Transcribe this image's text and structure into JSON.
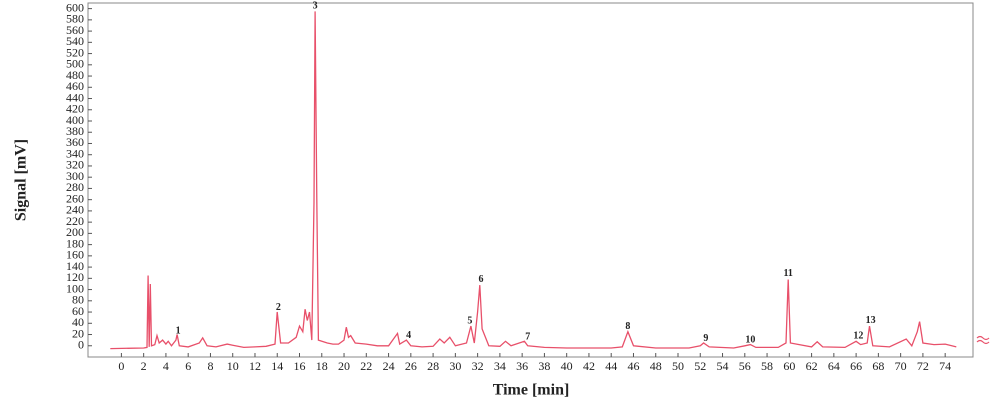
{
  "chart_data": {
    "type": "line",
    "x_label": "Time [min]",
    "y_label": "Signal [mV]",
    "x": [
      -1,
      2,
      2.3,
      2.4,
      2.5,
      2.6,
      2.7,
      3,
      3.2,
      3.4,
      3.7,
      4,
      4.2,
      4.5,
      4.9,
      5.0,
      5.2,
      6,
      7,
      7.3,
      7.7,
      8.5,
      9.5,
      10,
      11,
      12,
      13,
      13.8,
      14.0,
      14.3,
      15,
      15.7,
      16,
      16.3,
      16.5,
      16.7,
      16.9,
      17.1,
      17.3,
      17.4,
      17.55,
      17.7,
      18.5,
      19,
      19.5,
      20,
      20.2,
      20.4,
      20.6,
      21,
      22,
      23,
      24,
      24.8,
      25,
      25.6,
      26,
      27,
      28,
      28.6,
      29,
      29.5,
      30,
      31,
      31.4,
      31.7,
      32,
      32.2,
      32.4,
      33,
      34,
      34.5,
      35,
      36.2,
      36.5,
      38,
      40,
      44,
      45,
      45.5,
      46,
      48,
      51,
      52,
      52.3,
      52.8,
      55,
      56,
      56.5,
      57,
      59,
      59.7,
      59.9,
      60.1,
      62,
      62.5,
      63,
      65,
      66,
      66.4,
      67,
      67.2,
      67.5,
      69,
      70.5,
      71,
      71.5,
      71.7,
      72,
      73,
      74,
      75
    ],
    "values": [
      -5,
      -4,
      -3,
      125,
      -2,
      110,
      0,
      2,
      18,
      5,
      10,
      3,
      8,
      0,
      10,
      20,
      0,
      -2,
      5,
      14,
      0,
      -2,
      3,
      1,
      -3,
      -2,
      -1,
      3,
      60,
      5,
      5,
      15,
      35,
      25,
      65,
      45,
      60,
      10,
      255,
      595,
      260,
      10,
      5,
      3,
      3,
      10,
      33,
      15,
      18,
      5,
      3,
      0,
      0,
      22,
      3,
      10,
      0,
      -2,
      -1,
      12,
      5,
      15,
      0,
      5,
      35,
      5,
      60,
      108,
      30,
      0,
      -1,
      8,
      0,
      8,
      0,
      -3,
      -4,
      -4,
      -2,
      25,
      0,
      -4,
      -4,
      0,
      5,
      -2,
      -4,
      0,
      2,
      -3,
      -3,
      5,
      118,
      5,
      -2,
      7,
      -2,
      -3,
      8,
      2,
      5,
      35,
      0,
      -2,
      12,
      0,
      25,
      43,
      5,
      2,
      3,
      -2
    ],
    "color": "#e8506a",
    "xlim": [
      -3,
      76.5
    ],
    "ylim": [
      -20,
      610
    ],
    "xticks": [
      0,
      2,
      4,
      6,
      8,
      10,
      12,
      14,
      16,
      18,
      20,
      22,
      24,
      26,
      28,
      30,
      32,
      34,
      36,
      38,
      40,
      42,
      44,
      46,
      48,
      50,
      52,
      54,
      56,
      58,
      60,
      62,
      64,
      66,
      68,
      70,
      72,
      74
    ],
    "yticks": [
      0,
      20,
      40,
      60,
      80,
      100,
      120,
      140,
      160,
      180,
      200,
      220,
      240,
      260,
      280,
      300,
      320,
      340,
      360,
      380,
      400,
      420,
      440,
      460,
      480,
      500,
      520,
      540,
      560,
      580,
      600
    ],
    "annotations": [
      {
        "text": "1",
        "x": 5.1,
        "y": 26
      },
      {
        "text": "2",
        "x": 14.1,
        "y": 68
      },
      {
        "text": "3",
        "x": 17.4,
        "y": 604
      },
      {
        "text": "4",
        "x": 25.8,
        "y": 18
      },
      {
        "text": "5",
        "x": 31.3,
        "y": 44
      },
      {
        "text": "6",
        "x": 32.3,
        "y": 118
      },
      {
        "text": "7",
        "x": 36.5,
        "y": 15
      },
      {
        "text": "8",
        "x": 45.5,
        "y": 34
      },
      {
        "text": "9",
        "x": 52.5,
        "y": 13
      },
      {
        "text": "10",
        "x": 56.5,
        "y": 10
      },
      {
        "text": "11",
        "x": 59.9,
        "y": 128
      },
      {
        "text": "12",
        "x": 66.2,
        "y": 17
      },
      {
        "text": "13",
        "x": 67.3,
        "y": 45
      }
    ]
  }
}
